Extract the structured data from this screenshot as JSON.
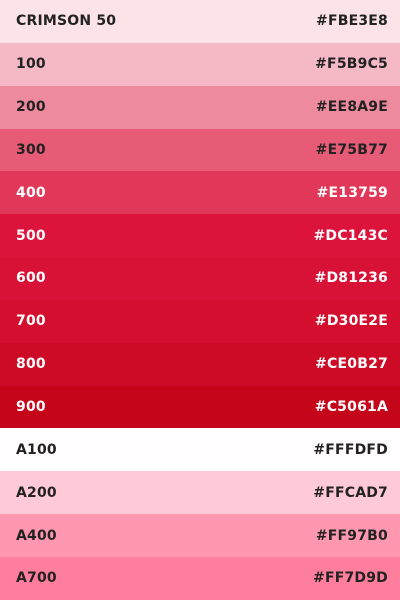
{
  "palette": {
    "rows": [
      {
        "label": "CRIMSON 50",
        "hex": "#FBE3E8",
        "color": "#FBE3E8",
        "text_color": "#222222"
      },
      {
        "label": "100",
        "hex": "#F5B9C5",
        "color": "#F5B9C5",
        "text_color": "#222222"
      },
      {
        "label": "200",
        "hex": "#EE8A9E",
        "color": "#EE8A9E",
        "text_color": "#222222"
      },
      {
        "label": "300",
        "hex": "#E75B77",
        "color": "#E75B77",
        "text_color": "#222222"
      },
      {
        "label": "400",
        "hex": "#E13759",
        "color": "#E13759",
        "text_color": "#FFFFFF"
      },
      {
        "label": "500",
        "hex": "#DC143C",
        "color": "#DC143C",
        "text_color": "#FFFFFF"
      },
      {
        "label": "600",
        "hex": "#D81236",
        "color": "#D81236",
        "text_color": "#FFFFFF"
      },
      {
        "label": "700",
        "hex": "#D30E2E",
        "color": "#D30E2E",
        "text_color": "#FFFFFF"
      },
      {
        "label": "800",
        "hex": "#CE0B27",
        "color": "#CE0B27",
        "text_color": "#FFFFFF"
      },
      {
        "label": "900",
        "hex": "#C5061A",
        "color": "#C5061A",
        "text_color": "#FFFFFF"
      },
      {
        "label": "A100",
        "hex": "#FFFDFD",
        "color": "#FFFDFD",
        "text_color": "#222222"
      },
      {
        "label": "A200",
        "hex": "#FFCAD7",
        "color": "#FFCAD7",
        "text_color": "#222222"
      },
      {
        "label": "A400",
        "hex": "#FF97B0",
        "color": "#FF97B0",
        "text_color": "#222222"
      },
      {
        "label": "A700",
        "hex": "#FF7D9D",
        "color": "#FF7D9D",
        "text_color": "#222222"
      }
    ]
  }
}
